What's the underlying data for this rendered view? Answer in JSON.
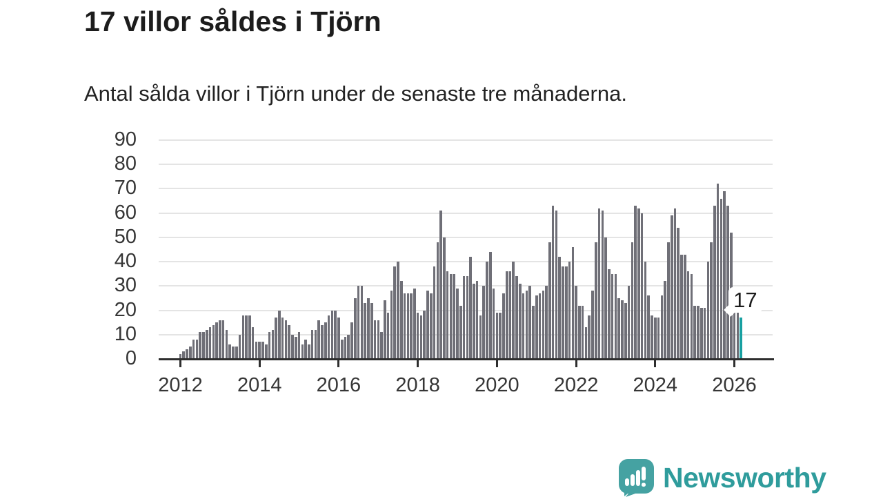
{
  "header": {
    "title": "17 villor såldes i Tjörn",
    "subtitle": "Antal sålda villor i Tjörn under de senaste tre månaderna."
  },
  "chart_data": {
    "type": "bar",
    "title": "17 villor såldes i Tjörn",
    "subtitle": "Antal sålda villor i Tjörn under de senaste tre månaderna.",
    "frequency": "monthly",
    "x_start": "2012-01",
    "x_end": "2026-03",
    "values": [
      2,
      3,
      4,
      5,
      8,
      8,
      11,
      11,
      12,
      13,
      14,
      15,
      16,
      16,
      12,
      6,
      5,
      5,
      10,
      18,
      18,
      18,
      13,
      7,
      7,
      7,
      6,
      11,
      12,
      17,
      20,
      17,
      16,
      14,
      10,
      9,
      11,
      6,
      8,
      6,
      12,
      12,
      16,
      14,
      15,
      18,
      20,
      20,
      17,
      8,
      9,
      10,
      15,
      25,
      30,
      30,
      23,
      25,
      23,
      16,
      16,
      11,
      24,
      19,
      28,
      38,
      40,
      32,
      27,
      27,
      27,
      29,
      19,
      18,
      20,
      28,
      27,
      38,
      48,
      61,
      50,
      36,
      35,
      35,
      29,
      22,
      34,
      34,
      42,
      31,
      32,
      18,
      30,
      40,
      44,
      29,
      19,
      19,
      27,
      36,
      36,
      40,
      34,
      31,
      27,
      28,
      30,
      22,
      26,
      27,
      28,
      30,
      48,
      63,
      61,
      42,
      38,
      38,
      40,
      46,
      30,
      22,
      22,
      13,
      18,
      28,
      48,
      62,
      61,
      50,
      37,
      35,
      35,
      25,
      24,
      23,
      30,
      48,
      63,
      62,
      60,
      40,
      26,
      18,
      17,
      17,
      26,
      32,
      48,
      59,
      62,
      54,
      43,
      43,
      36,
      35,
      22,
      22,
      21,
      21,
      40,
      48,
      63,
      72,
      66,
      69,
      63,
      52,
      22,
      20,
      17
    ],
    "ylim": [
      0,
      90
    ],
    "yticks": [
      0,
      10,
      20,
      30,
      40,
      50,
      60,
      70,
      80,
      90
    ],
    "xticks": [
      "2012",
      "2014",
      "2016",
      "2018",
      "2020",
      "2022",
      "2024",
      "2026"
    ],
    "grid": true,
    "legend": "none",
    "bar_color": "#6f6f77",
    "highlight_last": true,
    "highlight_color": "#18a0a1",
    "last_value_label": "17"
  },
  "annotation": {
    "label": "17"
  },
  "footer": {
    "brand": "Newsworthy",
    "brand_color": "#2f9c9c",
    "icon": "newsworthy-speech-bubble-chart-icon",
    "icon_color": "#45a2a2"
  }
}
